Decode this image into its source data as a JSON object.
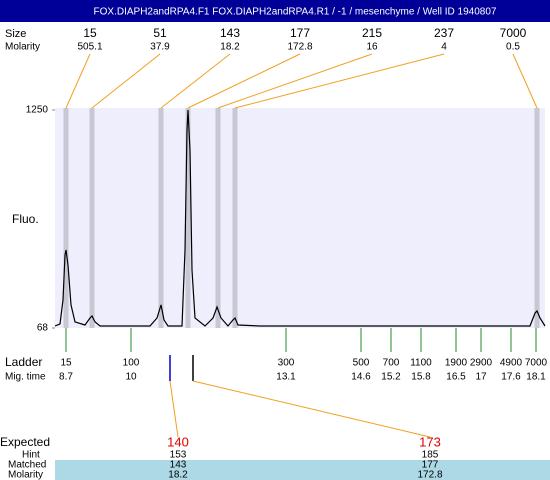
{
  "chart_data": {
    "type": "line",
    "title": "FOX.DIAPH2andRPA4.F1  FOX.DIAPH2andRPA4.R1 / -1 / mesenchyme / Well ID 1940807",
    "ylabel": "Fluo.",
    "xlim": [
      8.48,
      18.28
    ],
    "ylim": [
      68,
      1250
    ],
    "yticks": [
      68,
      1250
    ],
    "color": "#000000",
    "x": [
      8.48,
      8.58,
      8.64,
      8.68,
      8.7,
      8.74,
      8.8,
      8.88,
      9.08,
      9.18,
      9.22,
      9.28,
      9.38,
      10.38,
      10.52,
      10.6,
      10.66,
      10.74,
      11.02,
      11.08,
      11.12,
      11.14,
      11.18,
      11.22,
      11.28,
      11.48,
      11.64,
      11.72,
      11.8,
      11.94,
      12.04,
      12.08,
      12.14,
      12.58,
      17.98,
      18.08,
      18.12,
      18.18,
      18.28
    ],
    "values": [
      79,
      90,
      220,
      464,
      491,
      410,
      193,
      101,
      84,
      122,
      133,
      101,
      79,
      79,
      122,
      193,
      112,
      79,
      79,
      491,
      1140,
      1250,
      1033,
      382,
      122,
      79,
      122,
      182,
      122,
      79,
      112,
      122,
      84,
      79,
      79,
      149,
      160,
      122,
      79
    ],
    "peaks": {
      "size_label": "Size",
      "molarity_label": "Molarity",
      "sizes": [
        15,
        51,
        143,
        177,
        215,
        237,
        7000
      ],
      "molarity": [
        505.1,
        37.9,
        18.2,
        172.8,
        16,
        4,
        0.5
      ],
      "times": [
        8.7,
        9.22,
        10.6,
        11.14,
        11.74,
        12.08,
        18.12
      ]
    },
    "ladder": {
      "label": "Ladder",
      "time_label": "Mig. time",
      "sizes": [
        15,
        100,
        300,
        500,
        700,
        1100,
        1900,
        2900,
        4900,
        7000
      ],
      "times": [
        8.7,
        10,
        13.1,
        14.6,
        15.2,
        15.8,
        16.5,
        17,
        17.6,
        18.1
      ]
    },
    "expected": {
      "label": "Expected",
      "hint_label": "Hint",
      "matched_label": "Matched",
      "molarity_label": "Molarity",
      "sizes": [
        140,
        173
      ],
      "times": [
        10.78,
        11.24
      ],
      "hint": [
        153,
        185
      ],
      "matched": [
        143,
        177
      ],
      "molarity": [
        18.2,
        172.8
      ]
    }
  }
}
